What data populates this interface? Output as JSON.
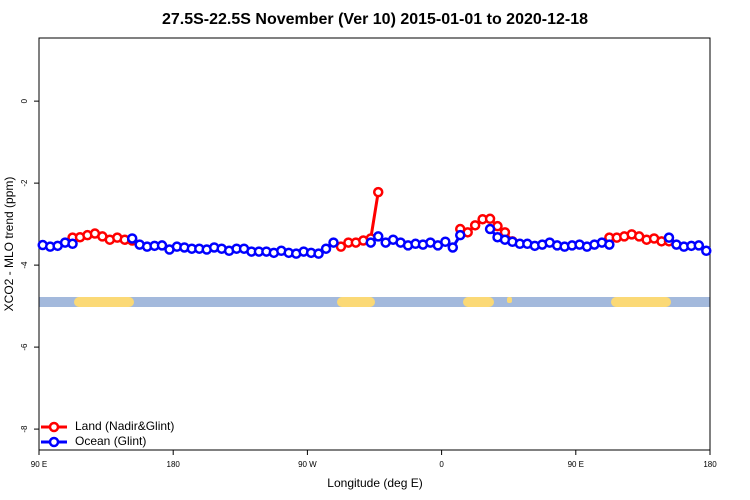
{
  "chart_data": {
    "type": "line",
    "title": "27.5S-22.5S November (Ver 10)   2015-01-01 to 2020-12-18",
    "xlabel": "Longitude (deg E)",
    "ylabel": "XCO2 - MLO trend (ppm)",
    "xlim": [
      90,
      540
    ],
    "ylim": [
      -8.51,
      1.54
    ],
    "xticks": [
      {
        "value": 90,
        "label": "90 E"
      },
      180,
      {
        "value": 270,
        "label": "90 W"
      },
      {
        "value": 360,
        "label": "0"
      },
      {
        "value": 450,
        "label": "90 E"
      },
      {
        "value": 540,
        "label": "180"
      }
    ],
    "yticks": [
      0,
      -2,
      -4,
      -6,
      -8
    ],
    "legend": "bottomleft",
    "x": [
      92.5,
      97.5,
      102.5,
      107.5,
      112.5,
      117.5,
      122.5,
      127.5,
      132.5,
      137.5,
      142.5,
      147.5,
      152.5,
      157.5,
      162.5,
      167.5,
      172.5,
      177.5,
      182.5,
      187.5,
      192.5,
      197.5,
      202.5,
      207.5,
      212.5,
      217.5,
      222.5,
      227.5,
      232.5,
      237.5,
      242.5,
      247.5,
      252.5,
      257.5,
      262.5,
      267.5,
      272.5,
      277.5,
      282.5,
      287.5,
      292.5,
      297.5,
      302.5,
      307.5,
      312.5,
      317.5,
      322.5,
      327.5,
      332.5,
      337.5,
      342.5,
      347.5,
      352.5,
      357.5,
      362.5,
      367.5,
      372.5,
      377.5,
      382.5,
      387.5,
      392.5,
      397.5,
      402.5,
      407.5,
      412.5,
      417.5,
      422.5,
      427.5,
      432.5,
      437.5,
      442.5,
      447.5,
      452.5,
      457.5,
      462.5,
      467.5,
      472.5,
      477.5,
      482.5,
      487.5,
      492.5,
      497.5,
      502.5,
      507.5,
      512.5,
      517.5,
      522.5,
      527.5,
      532.5,
      537.5
    ],
    "series": [
      {
        "name": "Land (Nadir&Glint)",
        "color": "#ff0000",
        "values": [
          null,
          null,
          null,
          null,
          -3.33,
          -3.32,
          -3.27,
          -3.23,
          -3.3,
          -3.38,
          -3.33,
          -3.38,
          -3.4,
          null,
          null,
          null,
          null,
          null,
          null,
          null,
          null,
          null,
          null,
          null,
          null,
          null,
          null,
          null,
          null,
          null,
          null,
          null,
          null,
          null,
          null,
          null,
          null,
          null,
          null,
          null,
          -3.55,
          -3.45,
          -3.45,
          -3.4,
          -3.35,
          -2.22,
          null,
          null,
          null,
          null,
          null,
          null,
          null,
          null,
          null,
          null,
          -3.12,
          -3.2,
          -3.03,
          -2.88,
          -2.87,
          -3.05,
          -3.2,
          -3.42,
          null,
          null,
          null,
          null,
          null,
          null,
          null,
          null,
          null,
          null,
          null,
          null,
          -3.33,
          -3.33,
          -3.3,
          -3.25,
          -3.3,
          -3.38,
          -3.35,
          -3.42,
          -3.42,
          null,
          null,
          null,
          null,
          null
        ]
      },
      {
        "name": "Ocean (Glint)",
        "color": "#0000ff",
        "values": [
          -3.51,
          -3.55,
          -3.53,
          -3.45,
          -3.48,
          null,
          null,
          null,
          null,
          null,
          null,
          null,
          -3.35,
          -3.5,
          -3.55,
          -3.53,
          -3.52,
          -3.62,
          -3.55,
          -3.57,
          -3.6,
          -3.6,
          -3.62,
          -3.57,
          -3.6,
          -3.65,
          -3.6,
          -3.6,
          -3.67,
          -3.67,
          -3.67,
          -3.7,
          -3.65,
          -3.7,
          -3.72,
          -3.67,
          -3.7,
          -3.72,
          -3.6,
          -3.45,
          null,
          null,
          null,
          null,
          -3.45,
          -3.3,
          -3.45,
          -3.38,
          -3.45,
          -3.52,
          -3.48,
          -3.5,
          -3.45,
          -3.52,
          -3.43,
          -3.57,
          -3.27,
          null,
          null,
          null,
          -3.12,
          -3.32,
          -3.38,
          -3.43,
          -3.48,
          -3.48,
          -3.53,
          -3.5,
          -3.45,
          -3.52,
          -3.55,
          -3.52,
          -3.5,
          -3.55,
          -3.5,
          -3.45,
          -3.5,
          null,
          null,
          null,
          null,
          null,
          null,
          null,
          -3.33,
          -3.5,
          -3.55,
          -3.53,
          -3.52,
          -3.65
        ]
      }
    ]
  }
}
